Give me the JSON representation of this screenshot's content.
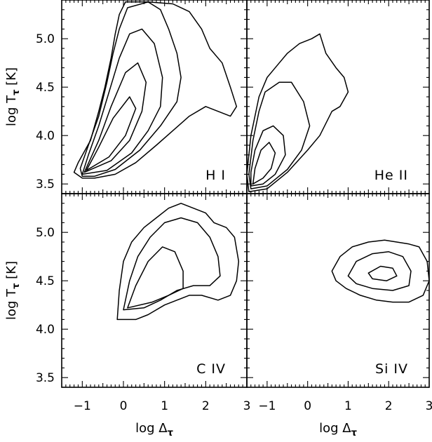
{
  "chart_data": {
    "type": "contour",
    "layout": "2x2",
    "x_axis": {
      "label_text": "log Δ",
      "label_subscript": "τ",
      "range": [
        -1.5,
        3.0
      ],
      "ticks": [
        -1,
        0,
        1,
        2,
        3
      ],
      "tick_labels": [
        "−1",
        "0",
        "1",
        "2",
        "3"
      ]
    },
    "y_axis": {
      "label_text": "log T",
      "label_subscript": "τ",
      "label_suffix": "[K]",
      "range": [
        3.4,
        5.4
      ],
      "ticks": [
        3.5,
        4.0,
        4.5,
        5.0
      ],
      "tick_labels": [
        "3.5",
        "4.0",
        "4.5",
        "5.0"
      ]
    },
    "panels": [
      {
        "name": "H I",
        "label": "H  I",
        "contours": [
          [
            [
              -1.0,
              3.56
            ],
            [
              -1.2,
              3.62
            ],
            [
              -1.1,
              3.72
            ],
            [
              -0.8,
              3.95
            ],
            [
              -0.6,
              4.25
            ],
            [
              -0.45,
              4.5
            ],
            [
              -0.3,
              4.8
            ],
            [
              -0.2,
              5.05
            ],
            [
              -0.1,
              5.25
            ],
            [
              0.05,
              5.38
            ],
            [
              0.6,
              5.38
            ],
            [
              1.2,
              5.36
            ],
            [
              1.6,
              5.28
            ],
            [
              1.9,
              5.1
            ],
            [
              2.1,
              4.9
            ],
            [
              2.4,
              4.75
            ],
            [
              2.6,
              4.5
            ],
            [
              2.75,
              4.3
            ],
            [
              2.6,
              4.2
            ],
            [
              2.3,
              4.25
            ],
            [
              2.0,
              4.3
            ],
            [
              1.6,
              4.2
            ],
            [
              1.2,
              4.05
            ],
            [
              0.8,
              3.9
            ],
            [
              0.3,
              3.72
            ],
            [
              -0.2,
              3.6
            ],
            [
              -0.7,
              3.56
            ],
            [
              -1.0,
              3.56
            ]
          ],
          [
            [
              -1.0,
              3.58
            ],
            [
              -1.05,
              3.66
            ],
            [
              -0.85,
              3.9
            ],
            [
              -0.6,
              4.2
            ],
            [
              -0.4,
              4.55
            ],
            [
              -0.25,
              4.85
            ],
            [
              -0.1,
              5.1
            ],
            [
              0.1,
              5.32
            ],
            [
              0.6,
              5.38
            ],
            [
              0.9,
              5.3
            ],
            [
              1.1,
              5.1
            ],
            [
              1.3,
              4.85
            ],
            [
              1.4,
              4.6
            ],
            [
              1.3,
              4.35
            ],
            [
              0.9,
              4.1
            ],
            [
              0.4,
              3.85
            ],
            [
              -0.2,
              3.65
            ],
            [
              -0.7,
              3.58
            ],
            [
              -1.0,
              3.58
            ]
          ],
          [
            [
              -1.0,
              3.6
            ],
            [
              -0.85,
              3.8
            ],
            [
              -0.6,
              4.1
            ],
            [
              -0.35,
              4.45
            ],
            [
              -0.1,
              4.8
            ],
            [
              0.15,
              5.05
            ],
            [
              0.45,
              5.1
            ],
            [
              0.75,
              4.95
            ],
            [
              0.95,
              4.6
            ],
            [
              0.9,
              4.3
            ],
            [
              0.6,
              4.05
            ],
            [
              0.2,
              3.82
            ],
            [
              -0.4,
              3.64
            ],
            [
              -1.0,
              3.6
            ]
          ],
          [
            [
              -0.95,
              3.62
            ],
            [
              -0.6,
              3.95
            ],
            [
              -0.3,
              4.3
            ],
            [
              0.05,
              4.65
            ],
            [
              0.35,
              4.75
            ],
            [
              0.55,
              4.55
            ],
            [
              0.45,
              4.25
            ],
            [
              0.15,
              3.95
            ],
            [
              -0.3,
              3.74
            ],
            [
              -0.95,
              3.62
            ]
          ],
          [
            [
              -0.9,
              3.64
            ],
            [
              -0.6,
              3.88
            ],
            [
              -0.25,
              4.18
            ],
            [
              0.15,
              4.4
            ],
            [
              0.3,
              4.28
            ],
            [
              0.05,
              4.0
            ],
            [
              -0.35,
              3.78
            ],
            [
              -0.9,
              3.64
            ]
          ]
        ]
      },
      {
        "name": "He II",
        "label": "He  II",
        "contours": [
          [
            [
              -1.45,
              3.42
            ],
            [
              -1.5,
              3.6
            ],
            [
              -1.4,
              4.0
            ],
            [
              -1.2,
              4.4
            ],
            [
              -1.0,
              4.6
            ],
            [
              -0.7,
              4.75
            ],
            [
              -0.5,
              4.85
            ],
            [
              -0.2,
              4.95
            ],
            [
              0.1,
              5.0
            ],
            [
              0.3,
              5.05
            ],
            [
              0.45,
              4.85
            ],
            [
              0.7,
              4.7
            ],
            [
              0.9,
              4.6
            ],
            [
              1.0,
              4.45
            ],
            [
              0.8,
              4.3
            ],
            [
              0.6,
              4.25
            ],
            [
              0.3,
              4.0
            ],
            [
              0.0,
              3.85
            ],
            [
              -0.5,
              3.62
            ],
            [
              -1.0,
              3.45
            ],
            [
              -1.45,
              3.42
            ]
          ],
          [
            [
              -1.4,
              3.45
            ],
            [
              -1.45,
              3.6
            ],
            [
              -1.35,
              3.95
            ],
            [
              -1.2,
              4.25
            ],
            [
              -1.05,
              4.45
            ],
            [
              -0.7,
              4.55
            ],
            [
              -0.4,
              4.55
            ],
            [
              -0.1,
              4.35
            ],
            [
              0.05,
              4.1
            ],
            [
              -0.15,
              3.85
            ],
            [
              -0.5,
              3.65
            ],
            [
              -1.0,
              3.48
            ],
            [
              -1.4,
              3.45
            ]
          ],
          [
            [
              -1.4,
              3.48
            ],
            [
              -1.4,
              3.62
            ],
            [
              -1.3,
              3.85
            ],
            [
              -1.1,
              4.05
            ],
            [
              -0.85,
              4.1
            ],
            [
              -0.6,
              4.0
            ],
            [
              -0.55,
              3.8
            ],
            [
              -0.8,
              3.6
            ],
            [
              -1.1,
              3.5
            ],
            [
              -1.4,
              3.48
            ]
          ],
          [
            [
              -1.35,
              3.5
            ],
            [
              -1.3,
              3.66
            ],
            [
              -1.15,
              3.85
            ],
            [
              -0.95,
              3.93
            ],
            [
              -0.8,
              3.82
            ],
            [
              -0.9,
              3.66
            ],
            [
              -1.1,
              3.56
            ],
            [
              -1.35,
              3.5
            ]
          ]
        ]
      },
      {
        "name": "C IV",
        "label": "C  IV",
        "contours": [
          [
            [
              -0.15,
              4.1
            ],
            [
              -0.1,
              4.4
            ],
            [
              0.0,
              4.7
            ],
            [
              0.2,
              4.9
            ],
            [
              0.5,
              5.05
            ],
            [
              0.8,
              5.15
            ],
            [
              1.1,
              5.25
            ],
            [
              1.4,
              5.3
            ],
            [
              1.7,
              5.25
            ],
            [
              2.0,
              5.2
            ],
            [
              2.2,
              5.1
            ],
            [
              2.5,
              5.05
            ],
            [
              2.7,
              4.95
            ],
            [
              2.8,
              4.7
            ],
            [
              2.75,
              4.5
            ],
            [
              2.6,
              4.35
            ],
            [
              2.3,
              4.3
            ],
            [
              1.9,
              4.35
            ],
            [
              1.6,
              4.35
            ],
            [
              1.3,
              4.3
            ],
            [
              1.0,
              4.25
            ],
            [
              0.6,
              4.15
            ],
            [
              0.3,
              4.1
            ],
            [
              -0.15,
              4.1
            ]
          ],
          [
            [
              0.0,
              4.2
            ],
            [
              0.15,
              4.5
            ],
            [
              0.35,
              4.75
            ],
            [
              0.65,
              4.95
            ],
            [
              1.0,
              5.1
            ],
            [
              1.4,
              5.15
            ],
            [
              1.8,
              5.1
            ],
            [
              2.1,
              4.95
            ],
            [
              2.3,
              4.75
            ],
            [
              2.35,
              4.55
            ],
            [
              2.1,
              4.45
            ],
            [
              1.7,
              4.45
            ],
            [
              1.3,
              4.4
            ],
            [
              0.9,
              4.3
            ],
            [
              0.5,
              4.22
            ],
            [
              0.0,
              4.2
            ]
          ],
          [
            [
              0.1,
              4.22
            ],
            [
              0.3,
              4.45
            ],
            [
              0.6,
              4.7
            ],
            [
              0.95,
              4.85
            ],
            [
              1.25,
              4.8
            ],
            [
              1.45,
              4.6
            ],
            [
              1.45,
              4.42
            ],
            [
              1.1,
              4.35
            ],
            [
              0.7,
              4.28
            ],
            [
              0.1,
              4.22
            ]
          ]
        ]
      },
      {
        "name": "Si IV",
        "label": "Si  IV",
        "contours": [
          [
            [
              0.6,
              4.6
            ],
            [
              0.8,
              4.75
            ],
            [
              1.1,
              4.85
            ],
            [
              1.5,
              4.9
            ],
            [
              1.9,
              4.92
            ],
            [
              2.2,
              4.9
            ],
            [
              2.5,
              4.88
            ],
            [
              2.75,
              4.85
            ],
            [
              2.95,
              4.7
            ],
            [
              3.0,
              4.5
            ],
            [
              2.85,
              4.35
            ],
            [
              2.5,
              4.28
            ],
            [
              2.1,
              4.28
            ],
            [
              1.7,
              4.3
            ],
            [
              1.3,
              4.35
            ],
            [
              0.95,
              4.42
            ],
            [
              0.7,
              4.5
            ],
            [
              0.6,
              4.6
            ]
          ],
          [
            [
              1.0,
              4.55
            ],
            [
              1.2,
              4.7
            ],
            [
              1.6,
              4.78
            ],
            [
              2.0,
              4.8
            ],
            [
              2.35,
              4.75
            ],
            [
              2.55,
              4.6
            ],
            [
              2.5,
              4.45
            ],
            [
              2.1,
              4.4
            ],
            [
              1.6,
              4.42
            ],
            [
              1.2,
              4.47
            ],
            [
              1.0,
              4.55
            ]
          ],
          [
            [
              1.5,
              4.58
            ],
            [
              1.8,
              4.65
            ],
            [
              2.1,
              4.63
            ],
            [
              2.2,
              4.55
            ],
            [
              1.95,
              4.5
            ],
            [
              1.6,
              4.52
            ],
            [
              1.5,
              4.58
            ]
          ]
        ]
      }
    ]
  }
}
